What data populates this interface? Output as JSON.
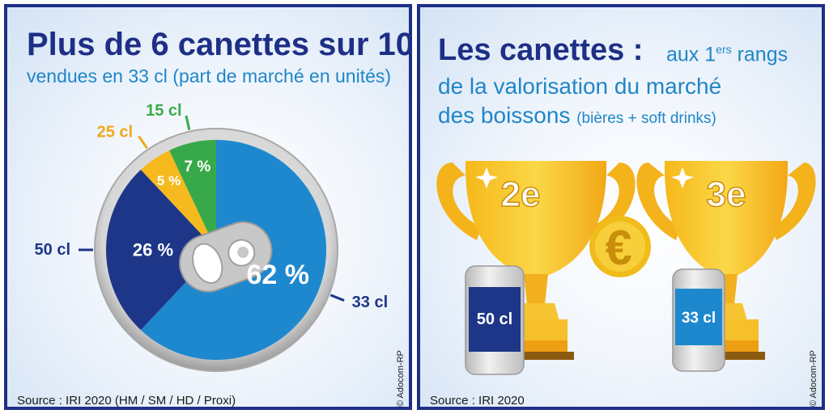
{
  "left": {
    "title": "Plus de 6 canettes sur 10",
    "subtitle": "vendues en 33 cl (part de marché en unités)",
    "source": "Source : IRI 2020 (HM / SM / HD / Proxi)",
    "credit": "© Adocom-RP"
  },
  "right": {
    "title": "Les canettes :",
    "sub1": "aux 1",
    "sub1_sup": "ers",
    "sub1_end": " rangs",
    "sub2": "de la valorisation du marché",
    "sub3": "des boissons",
    "sub3_small": "(bières + soft drinks)",
    "trophy1_rank": "2e",
    "trophy2_rank": "3e",
    "can1_label": "50 cl",
    "can2_label": "33 cl",
    "euro_symbol": "€",
    "source": "Source : IRI 2020",
    "credit": "© Adocom-RP"
  },
  "chart_data": {
    "type": "pie",
    "title": "Plus de 6 canettes sur 10",
    "subtitle": "vendues en 33 cl (part de marché en unités)",
    "categories": [
      "33 cl",
      "50 cl",
      "25 cl",
      "15 cl"
    ],
    "values": [
      62,
      26,
      5,
      7
    ],
    "value_labels": [
      "62 %",
      "26 %",
      "5 %",
      "7 %"
    ],
    "colors": [
      "#1e88cf",
      "#1e3688",
      "#f6b91e",
      "#38a94a"
    ],
    "label_colors": [
      "#1e3688",
      "#1e3688",
      "#f0a81a",
      "#3aaa4a"
    ]
  }
}
